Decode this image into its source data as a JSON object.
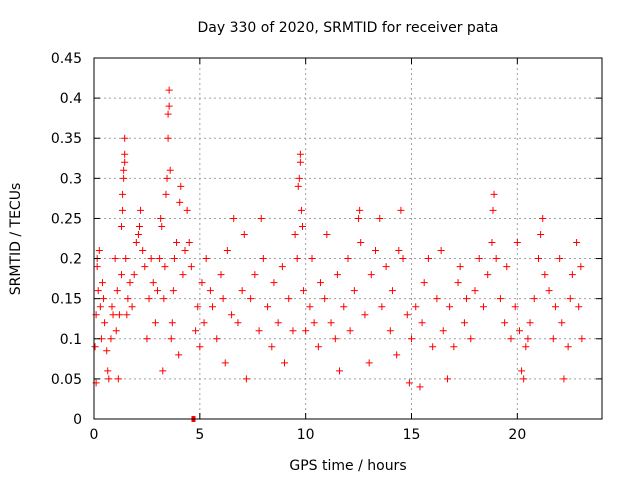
{
  "chart_data": {
    "type": "scatter",
    "title": "Day 330 of 2020, SRMTID for receiver pata",
    "xlabel": "GPS time / hours",
    "ylabel": "SRMTID / TECUs",
    "xlim": [
      0,
      24
    ],
    "ylim": [
      0,
      0.45
    ],
    "xticks": [
      0,
      5,
      10,
      15,
      20
    ],
    "yticks": [
      0,
      0.05,
      0.1,
      0.15,
      0.2,
      0.25,
      0.3,
      0.35,
      0.4,
      0.45
    ],
    "xtick_labels": [
      "0",
      "5",
      "10",
      "15",
      "20"
    ],
    "ytick_labels": [
      "0",
      "0.05",
      "0.1",
      "0.15",
      "0.2",
      "0.25",
      "0.3",
      "0.35",
      "0.4",
      "0.45"
    ],
    "grid": true,
    "marker": "+",
    "color": "#ff0000",
    "series": [
      {
        "name": "SRMTID",
        "points": [
          [
            0.05,
            0.09
          ],
          [
            0.1,
            0.045
          ],
          [
            0.1,
            0.13
          ],
          [
            0.15,
            0.19
          ],
          [
            0.15,
            0.2
          ],
          [
            0.2,
            0.16
          ],
          [
            0.25,
            0.21
          ],
          [
            0.3,
            0.14
          ],
          [
            0.35,
            0.1
          ],
          [
            0.4,
            0.17
          ],
          [
            0.45,
            0.15
          ],
          [
            0.5,
            0.12
          ],
          [
            0.6,
            0.085
          ],
          [
            0.65,
            0.06
          ],
          [
            0.7,
            0.05
          ],
          [
            0.8,
            0.1
          ],
          [
            0.85,
            0.14
          ],
          [
            0.9,
            0.13
          ],
          [
            1.0,
            0.2
          ],
          [
            1.05,
            0.11
          ],
          [
            1.1,
            0.16
          ],
          [
            1.15,
            0.05
          ],
          [
            1.2,
            0.13
          ],
          [
            1.3,
            0.18
          ],
          [
            1.3,
            0.24
          ],
          [
            1.35,
            0.26
          ],
          [
            1.35,
            0.28
          ],
          [
            1.4,
            0.3
          ],
          [
            1.4,
            0.31
          ],
          [
            1.45,
            0.32
          ],
          [
            1.45,
            0.33
          ],
          [
            1.45,
            0.35
          ],
          [
            1.5,
            0.2
          ],
          [
            1.55,
            0.13
          ],
          [
            1.6,
            0.15
          ],
          [
            1.7,
            0.17
          ],
          [
            1.8,
            0.14
          ],
          [
            1.9,
            0.18
          ],
          [
            2.0,
            0.22
          ],
          [
            2.1,
            0.23
          ],
          [
            2.15,
            0.24
          ],
          [
            2.2,
            0.26
          ],
          [
            2.3,
            0.21
          ],
          [
            2.4,
            0.19
          ],
          [
            2.5,
            0.1
          ],
          [
            2.6,
            0.15
          ],
          [
            2.7,
            0.2
          ],
          [
            2.8,
            0.17
          ],
          [
            2.9,
            0.12
          ],
          [
            3.0,
            0.16
          ],
          [
            3.1,
            0.2
          ],
          [
            3.15,
            0.25
          ],
          [
            3.2,
            0.24
          ],
          [
            3.25,
            0.06
          ],
          [
            3.3,
            0.15
          ],
          [
            3.35,
            0.19
          ],
          [
            3.4,
            0.28
          ],
          [
            3.45,
            0.3
          ],
          [
            3.5,
            0.35
          ],
          [
            3.5,
            0.38
          ],
          [
            3.55,
            0.39
          ],
          [
            3.55,
            0.41
          ],
          [
            3.6,
            0.31
          ],
          [
            3.65,
            0.1
          ],
          [
            3.7,
            0.12
          ],
          [
            3.75,
            0.16
          ],
          [
            3.8,
            0.2
          ],
          [
            3.9,
            0.22
          ],
          [
            4.0,
            0.08
          ],
          [
            4.05,
            0.27
          ],
          [
            4.1,
            0.29
          ],
          [
            4.2,
            0.18
          ],
          [
            4.3,
            0.21
          ],
          [
            4.4,
            0.26
          ],
          [
            4.5,
            0.22
          ],
          [
            4.6,
            0.19
          ],
          [
            4.8,
            0.11
          ],
          [
            4.9,
            0.14
          ],
          [
            5.0,
            0.09
          ],
          [
            5.1,
            0.17
          ],
          [
            5.2,
            0.12
          ],
          [
            5.3,
            0.2
          ],
          [
            5.5,
            0.16
          ],
          [
            5.6,
            0.14
          ],
          [
            5.8,
            0.1
          ],
          [
            6.0,
            0.18
          ],
          [
            6.1,
            0.15
          ],
          [
            6.2,
            0.07
          ],
          [
            6.3,
            0.21
          ],
          [
            6.5,
            0.13
          ],
          [
            6.6,
            0.25
          ],
          [
            6.8,
            0.12
          ],
          [
            7.0,
            0.16
          ],
          [
            7.1,
            0.23
          ],
          [
            7.2,
            0.05
          ],
          [
            7.4,
            0.15
          ],
          [
            7.6,
            0.18
          ],
          [
            7.8,
            0.11
          ],
          [
            7.9,
            0.25
          ],
          [
            8.0,
            0.2
          ],
          [
            8.2,
            0.14
          ],
          [
            8.4,
            0.09
          ],
          [
            8.5,
            0.17
          ],
          [
            8.7,
            0.12
          ],
          [
            8.9,
            0.19
          ],
          [
            9.0,
            0.07
          ],
          [
            9.2,
            0.15
          ],
          [
            9.4,
            0.11
          ],
          [
            9.5,
            0.23
          ],
          [
            9.6,
            0.2
          ],
          [
            9.65,
            0.29
          ],
          [
            9.7,
            0.3
          ],
          [
            9.75,
            0.32
          ],
          [
            9.75,
            0.33
          ],
          [
            9.8,
            0.26
          ],
          [
            9.85,
            0.24
          ],
          [
            9.9,
            0.16
          ],
          [
            10.0,
            0.11
          ],
          [
            10.2,
            0.14
          ],
          [
            10.3,
            0.2
          ],
          [
            10.4,
            0.12
          ],
          [
            10.6,
            0.09
          ],
          [
            10.7,
            0.17
          ],
          [
            10.9,
            0.15
          ],
          [
            11.0,
            0.23
          ],
          [
            11.2,
            0.12
          ],
          [
            11.4,
            0.1
          ],
          [
            11.5,
            0.18
          ],
          [
            11.6,
            0.06
          ],
          [
            11.8,
            0.14
          ],
          [
            12.0,
            0.2
          ],
          [
            12.1,
            0.11
          ],
          [
            12.3,
            0.16
          ],
          [
            12.5,
            0.25
          ],
          [
            12.55,
            0.26
          ],
          [
            12.6,
            0.22
          ],
          [
            12.8,
            0.13
          ],
          [
            13.0,
            0.07
          ],
          [
            13.1,
            0.18
          ],
          [
            13.3,
            0.21
          ],
          [
            13.5,
            0.25
          ],
          [
            13.6,
            0.14
          ],
          [
            13.8,
            0.19
          ],
          [
            14.0,
            0.11
          ],
          [
            14.1,
            0.16
          ],
          [
            14.3,
            0.08
          ],
          [
            14.4,
            0.21
          ],
          [
            14.5,
            0.26
          ],
          [
            14.6,
            0.2
          ],
          [
            14.8,
            0.13
          ],
          [
            14.9,
            0.045
          ],
          [
            15.0,
            0.1
          ],
          [
            15.2,
            0.14
          ],
          [
            15.4,
            0.04
          ],
          [
            15.5,
            0.12
          ],
          [
            15.6,
            0.17
          ],
          [
            15.8,
            0.2
          ],
          [
            16.0,
            0.09
          ],
          [
            16.2,
            0.15
          ],
          [
            16.4,
            0.21
          ],
          [
            16.5,
            0.11
          ],
          [
            16.7,
            0.05
          ],
          [
            16.8,
            0.14
          ],
          [
            17.0,
            0.09
          ],
          [
            17.2,
            0.17
          ],
          [
            17.3,
            0.19
          ],
          [
            17.5,
            0.12
          ],
          [
            17.6,
            0.15
          ],
          [
            17.8,
            0.1
          ],
          [
            18.0,
            0.16
          ],
          [
            18.2,
            0.2
          ],
          [
            18.4,
            0.14
          ],
          [
            18.6,
            0.18
          ],
          [
            18.8,
            0.22
          ],
          [
            18.85,
            0.26
          ],
          [
            18.9,
            0.28
          ],
          [
            19.0,
            0.2
          ],
          [
            19.2,
            0.15
          ],
          [
            19.4,
            0.12
          ],
          [
            19.5,
            0.19
          ],
          [
            19.7,
            0.1
          ],
          [
            19.9,
            0.14
          ],
          [
            20.0,
            0.22
          ],
          [
            20.1,
            0.11
          ],
          [
            20.2,
            0.06
          ],
          [
            20.3,
            0.05
          ],
          [
            20.4,
            0.09
          ],
          [
            20.5,
            0.1
          ],
          [
            20.6,
            0.12
          ],
          [
            20.8,
            0.15
          ],
          [
            21.0,
            0.2
          ],
          [
            21.1,
            0.23
          ],
          [
            21.2,
            0.25
          ],
          [
            21.3,
            0.18
          ],
          [
            21.5,
            0.16
          ],
          [
            21.7,
            0.1
          ],
          [
            21.8,
            0.14
          ],
          [
            22.0,
            0.2
          ],
          [
            22.1,
            0.12
          ],
          [
            22.2,
            0.05
          ],
          [
            22.4,
            0.09
          ],
          [
            22.5,
            0.15
          ],
          [
            22.6,
            0.18
          ],
          [
            22.8,
            0.22
          ],
          [
            22.9,
            0.14
          ],
          [
            23.0,
            0.19
          ],
          [
            23.05,
            0.1
          ]
        ]
      }
    ],
    "markers": [
      {
        "x": 4.7,
        "y": 0.0,
        "shape": "square"
      }
    ]
  }
}
